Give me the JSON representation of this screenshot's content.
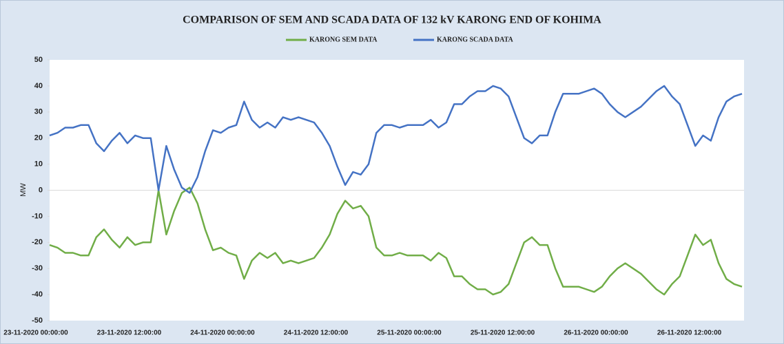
{
  "chart_data": {
    "type": "line",
    "title": "COMPARISON OF SEM AND SCADA DATA OF 132 kV KARONG END OF KOHIMA",
    "y_label": "MW",
    "categories": [
      "23-11-2020 00:00:00",
      null,
      null,
      null,
      null,
      null,
      null,
      null,
      null,
      null,
      null,
      null,
      "23-11-2020 12:00:00",
      null,
      null,
      null,
      null,
      null,
      null,
      null,
      null,
      null,
      null,
      null,
      "24-11-2020 00:00:00",
      null,
      null,
      null,
      null,
      null,
      null,
      null,
      null,
      null,
      null,
      null,
      "24-11-2020 12:00:00",
      null,
      null,
      null,
      null,
      null,
      null,
      null,
      null,
      null,
      null,
      null,
      "25-11-2020 00:00:00",
      null,
      null,
      null,
      null,
      null,
      null,
      null,
      null,
      null,
      null,
      null,
      "25-11-2020 12:00:00",
      null,
      null,
      null,
      null,
      null,
      null,
      null,
      null,
      null,
      null,
      null,
      "26-11-2020 00:00:00",
      null,
      null,
      null,
      null,
      null,
      null,
      null,
      null,
      null,
      null,
      null,
      "26-11-2020 12:00:00",
      null,
      null,
      null,
      null,
      null
    ],
    "series": [
      {
        "name": "KARONG SEM DATA",
        "color": "#70ad47",
        "values": [
          -21,
          -22,
          -24,
          -24,
          -25,
          -25,
          -18,
          -15,
          -19,
          -22,
          -18,
          -21,
          -20,
          -20,
          0,
          -17,
          -8,
          -1,
          1,
          -5,
          -15,
          -23,
          -22,
          -24,
          -25,
          -34,
          -27,
          -24,
          -26,
          -24,
          -28,
          -27,
          -28,
          -27,
          -26,
          -22,
          -17,
          -9,
          -4,
          -7,
          -6,
          -10,
          -22,
          -25,
          -25,
          -24,
          -25,
          -25,
          -25,
          -27,
          -24,
          -26,
          -33,
          -33,
          -36,
          -38,
          -38,
          -40,
          -39,
          -36,
          -28,
          -20,
          -18,
          -21,
          -21,
          -30,
          -37,
          -37,
          -37,
          -38,
          -39,
          -37,
          -33,
          -30,
          -28,
          -30,
          -32,
          -35,
          -38,
          -40,
          -36,
          -33,
          -25,
          -17,
          -21,
          -19,
          -28,
          -34,
          -36,
          -37
        ]
      },
      {
        "name": "KARONG SCADA DATA",
        "color": "#4472c4",
        "values": [
          21,
          22,
          24,
          24,
          25,
          25,
          18,
          15,
          19,
          22,
          18,
          21,
          20,
          20,
          0,
          17,
          8,
          1,
          -1,
          5,
          15,
          23,
          22,
          24,
          25,
          34,
          27,
          24,
          26,
          24,
          28,
          27,
          28,
          27,
          26,
          22,
          17,
          9,
          2,
          7,
          6,
          10,
          22,
          25,
          25,
          24,
          25,
          25,
          25,
          27,
          24,
          26,
          33,
          33,
          36,
          38,
          38,
          40,
          39,
          36,
          28,
          20,
          18,
          21,
          21,
          30,
          37,
          37,
          37,
          38,
          39,
          37,
          33,
          30,
          28,
          30,
          32,
          35,
          38,
          40,
          36,
          33,
          25,
          17,
          21,
          19,
          28,
          34,
          36,
          37
        ]
      }
    ],
    "ylim": [
      -50,
      50
    ],
    "yticks": [
      -50,
      -40,
      -30,
      -20,
      -10,
      0,
      10,
      20,
      30,
      40,
      50
    ],
    "grid": false,
    "legend": "top"
  }
}
